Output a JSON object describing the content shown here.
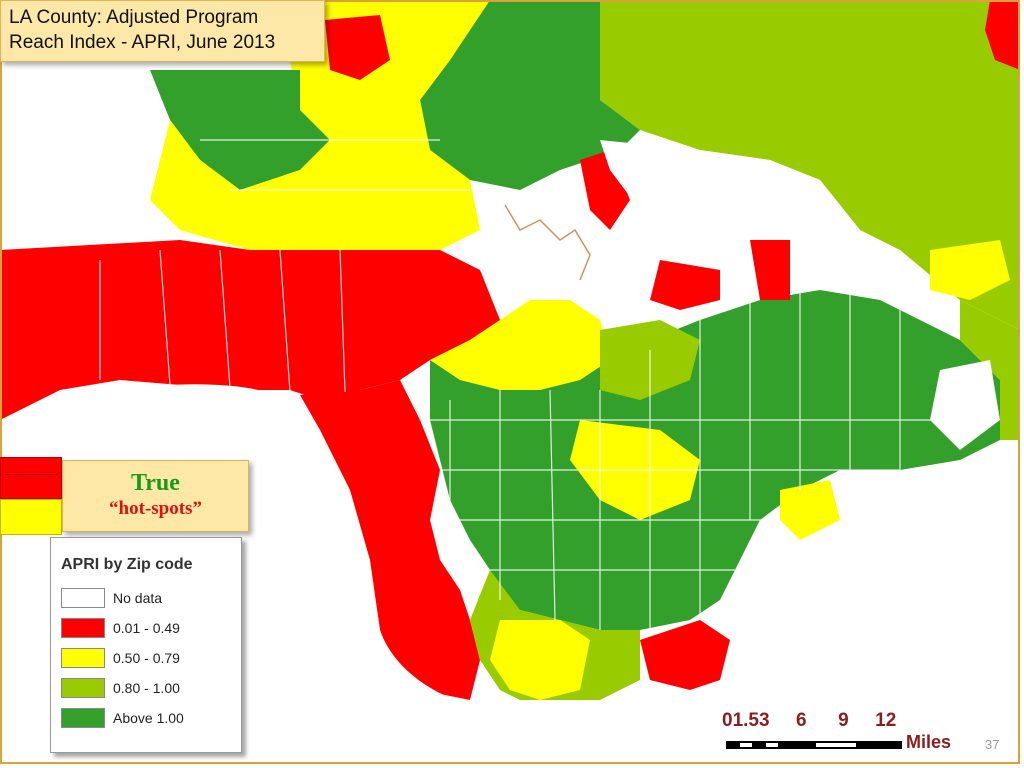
{
  "title": {
    "line1": "LA County: Adjusted Program",
    "line2": "Reach Index - APRI, June 2013"
  },
  "hotspots": {
    "title": "True",
    "subtitle": "“hot-spots”",
    "colors": [
      "#ff0000",
      "#ffff00"
    ]
  },
  "legend": {
    "title": "APRI by Zip code",
    "items": [
      {
        "label": "No data",
        "color": "#ffffff"
      },
      {
        "label": "0.01 - 0.49",
        "color": "#ff0000"
      },
      {
        "label": "0.50 - 0.79",
        "color": "#ffff00"
      },
      {
        "label": "0.80 - 1.00",
        "color": "#99cc00"
      },
      {
        "label": "Above 1.00",
        "color": "#33a02c"
      }
    ]
  },
  "scale": {
    "ticks": "01.53     6      9     12",
    "units": "Miles"
  },
  "slide_number": "37",
  "map_colors": {
    "red": "#ff0000",
    "yellow": "#ffff00",
    "lightgreen": "#99cc00",
    "green": "#33a02c",
    "nodata": "#ffffff",
    "ocean": "#ffffff"
  }
}
